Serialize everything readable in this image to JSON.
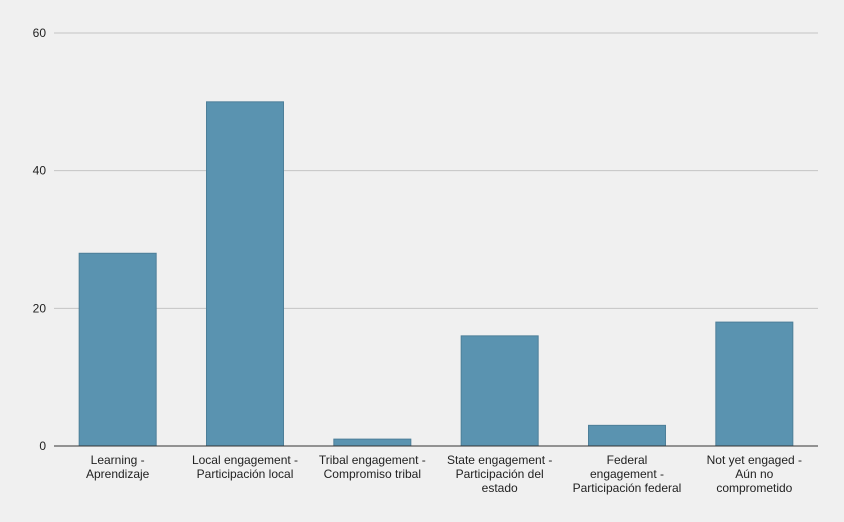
{
  "chart_data": {
    "type": "bar",
    "title": "",
    "xlabel": "",
    "ylabel": "",
    "ylim": [
      0,
      60
    ],
    "yticks": [
      0,
      20,
      40,
      60
    ],
    "grid": true,
    "legend": "none",
    "categories": [
      [
        "Learning -",
        "Aprendizaje"
      ],
      [
        "Local engagement -",
        "Participación local"
      ],
      [
        "Tribal engagement -",
        "Compromiso tribal"
      ],
      [
        "State engagement -",
        "Participación del",
        "estado"
      ],
      [
        "Federal",
        "engagement -",
        "Participación federal"
      ],
      [
        "Not yet engaged -",
        "Aún no",
        "comprometido"
      ]
    ],
    "values": [
      28,
      50,
      1,
      16,
      3,
      18
    ],
    "colors": {
      "bar": "#5a93b0",
      "bar_edge": "#4d7f99",
      "grid": "#c4c4c4",
      "axis": "#333333",
      "background": "#f0f0f0"
    }
  }
}
